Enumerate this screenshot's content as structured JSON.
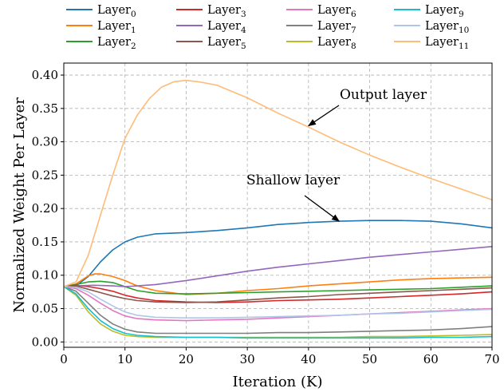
{
  "chart_data": {
    "type": "line",
    "title": "",
    "xlabel": "Iteration (K)",
    "ylabel": "Normalized Weight Per Layer",
    "xlim": [
      0,
      70
    ],
    "ylim": [
      -0.008,
      0.418
    ],
    "xticks": [
      "0",
      "10",
      "20",
      "30",
      "40",
      "50",
      "60",
      "70"
    ],
    "yticks": [
      "0.00",
      "0.05",
      "0.10",
      "0.15",
      "0.20",
      "0.25",
      "0.30",
      "0.35",
      "0.40"
    ],
    "grid": true,
    "legend": {
      "placement": "top, above plot, 4 columns",
      "entries": [
        {
          "base": "Layer",
          "sub": "0"
        },
        {
          "base": "Layer",
          "sub": "1"
        },
        {
          "base": "Layer",
          "sub": "2"
        },
        {
          "base": "Layer",
          "sub": "3"
        },
        {
          "base": "Layer",
          "sub": "4"
        },
        {
          "base": "Layer",
          "sub": "5"
        },
        {
          "base": "Layer",
          "sub": "6"
        },
        {
          "base": "Layer",
          "sub": "7"
        },
        {
          "base": "Layer",
          "sub": "8"
        },
        {
          "base": "Layer",
          "sub": "9"
        },
        {
          "base": "Layer",
          "sub": "10"
        },
        {
          "base": "Layer",
          "sub": "11"
        }
      ]
    },
    "annotations": [
      {
        "text": "Output layer",
        "target": [
          40,
          0.324
        ]
      },
      {
        "text": "Shallow layer",
        "target": [
          45,
          0.181
        ]
      }
    ],
    "series": [
      {
        "name": "Layer0",
        "color": "#1f77b4",
        "points": [
          [
            0,
            0.083
          ],
          [
            2,
            0.084
          ],
          [
            4,
            0.098
          ],
          [
            6,
            0.12
          ],
          [
            8,
            0.138
          ],
          [
            10,
            0.15
          ],
          [
            12,
            0.157
          ],
          [
            15,
            0.162
          ],
          [
            20,
            0.164
          ],
          [
            25,
            0.167
          ],
          [
            30,
            0.171
          ],
          [
            35,
            0.176
          ],
          [
            40,
            0.179
          ],
          [
            45,
            0.181
          ],
          [
            50,
            0.182
          ],
          [
            55,
            0.182
          ],
          [
            60,
            0.181
          ],
          [
            65,
            0.177
          ],
          [
            70,
            0.171
          ]
        ]
      },
      {
        "name": "Layer1",
        "color": "#ff7f0e",
        "points": [
          [
            0,
            0.083
          ],
          [
            2,
            0.087
          ],
          [
            4,
            0.099
          ],
          [
            5,
            0.102
          ],
          [
            6,
            0.102
          ],
          [
            8,
            0.098
          ],
          [
            10,
            0.092
          ],
          [
            12,
            0.084
          ],
          [
            15,
            0.077
          ],
          [
            20,
            0.071
          ],
          [
            25,
            0.073
          ],
          [
            30,
            0.077
          ],
          [
            35,
            0.08
          ],
          [
            40,
            0.084
          ],
          [
            45,
            0.087
          ],
          [
            50,
            0.09
          ],
          [
            55,
            0.093
          ],
          [
            60,
            0.095
          ],
          [
            65,
            0.096
          ],
          [
            70,
            0.097
          ]
        ]
      },
      {
        "name": "Layer2",
        "color": "#2ca02c",
        "points": [
          [
            0,
            0.083
          ],
          [
            2,
            0.086
          ],
          [
            4,
            0.09
          ],
          [
            6,
            0.091
          ],
          [
            8,
            0.089
          ],
          [
            10,
            0.083
          ],
          [
            12,
            0.077
          ],
          [
            15,
            0.073
          ],
          [
            20,
            0.072
          ],
          [
            25,
            0.073
          ],
          [
            30,
            0.074
          ],
          [
            35,
            0.075
          ],
          [
            40,
            0.076
          ],
          [
            45,
            0.077
          ],
          [
            50,
            0.078
          ],
          [
            55,
            0.079
          ],
          [
            60,
            0.08
          ],
          [
            65,
            0.082
          ],
          [
            70,
            0.084
          ]
        ]
      },
      {
        "name": "Layer3",
        "color": "#d62728",
        "points": [
          [
            0,
            0.083
          ],
          [
            2,
            0.085
          ],
          [
            4,
            0.083
          ],
          [
            6,
            0.08
          ],
          [
            8,
            0.076
          ],
          [
            10,
            0.07
          ],
          [
            12,
            0.066
          ],
          [
            15,
            0.062
          ],
          [
            20,
            0.06
          ],
          [
            25,
            0.059
          ],
          [
            30,
            0.06
          ],
          [
            35,
            0.062
          ],
          [
            40,
            0.063
          ],
          [
            45,
            0.064
          ],
          [
            50,
            0.066
          ],
          [
            55,
            0.068
          ],
          [
            60,
            0.07
          ],
          [
            65,
            0.072
          ],
          [
            70,
            0.075
          ]
        ]
      },
      {
        "name": "Layer4",
        "color": "#9467bd",
        "points": [
          [
            0,
            0.083
          ],
          [
            2,
            0.084
          ],
          [
            5,
            0.085
          ],
          [
            8,
            0.084
          ],
          [
            10,
            0.083
          ],
          [
            12,
            0.084
          ],
          [
            15,
            0.086
          ],
          [
            20,
            0.092
          ],
          [
            25,
            0.099
          ],
          [
            30,
            0.106
          ],
          [
            35,
            0.112
          ],
          [
            40,
            0.117
          ],
          [
            45,
            0.122
          ],
          [
            50,
            0.127
          ],
          [
            55,
            0.131
          ],
          [
            60,
            0.135
          ],
          [
            65,
            0.139
          ],
          [
            70,
            0.143
          ]
        ]
      },
      {
        "name": "Layer5",
        "color": "#8c564b",
        "points": [
          [
            0,
            0.083
          ],
          [
            2,
            0.084
          ],
          [
            4,
            0.079
          ],
          [
            6,
            0.074
          ],
          [
            8,
            0.069
          ],
          [
            10,
            0.065
          ],
          [
            12,
            0.062
          ],
          [
            15,
            0.06
          ],
          [
            20,
            0.059
          ],
          [
            25,
            0.06
          ],
          [
            30,
            0.063
          ],
          [
            35,
            0.066
          ],
          [
            40,
            0.068
          ],
          [
            45,
            0.071
          ],
          [
            50,
            0.073
          ],
          [
            55,
            0.075
          ],
          [
            60,
            0.077
          ],
          [
            65,
            0.079
          ],
          [
            70,
            0.081
          ]
        ]
      },
      {
        "name": "Layer6",
        "color": "#e377c2",
        "points": [
          [
            0,
            0.083
          ],
          [
            2,
            0.08
          ],
          [
            4,
            0.07
          ],
          [
            6,
            0.058
          ],
          [
            8,
            0.047
          ],
          [
            10,
            0.039
          ],
          [
            12,
            0.035
          ],
          [
            15,
            0.033
          ],
          [
            20,
            0.032
          ],
          [
            25,
            0.033
          ],
          [
            30,
            0.034
          ],
          [
            35,
            0.036
          ],
          [
            40,
            0.038
          ],
          [
            45,
            0.04
          ],
          [
            50,
            0.042
          ],
          [
            55,
            0.044
          ],
          [
            60,
            0.046
          ],
          [
            65,
            0.048
          ],
          [
            70,
            0.05
          ]
        ]
      },
      {
        "name": "Layer7",
        "color": "#7f7f7f",
        "points": [
          [
            0,
            0.083
          ],
          [
            2,
            0.076
          ],
          [
            4,
            0.058
          ],
          [
            6,
            0.04
          ],
          [
            8,
            0.027
          ],
          [
            10,
            0.019
          ],
          [
            12,
            0.015
          ],
          [
            15,
            0.013
          ],
          [
            20,
            0.013
          ],
          [
            25,
            0.013
          ],
          [
            30,
            0.013
          ],
          [
            35,
            0.014
          ],
          [
            40,
            0.014
          ],
          [
            45,
            0.015
          ],
          [
            50,
            0.016
          ],
          [
            55,
            0.017
          ],
          [
            60,
            0.018
          ],
          [
            65,
            0.02
          ],
          [
            70,
            0.023
          ]
        ]
      },
      {
        "name": "Layer8",
        "color": "#bcbd22",
        "points": [
          [
            0,
            0.083
          ],
          [
            2,
            0.07
          ],
          [
            4,
            0.045
          ],
          [
            6,
            0.027
          ],
          [
            8,
            0.016
          ],
          [
            10,
            0.01
          ],
          [
            12,
            0.008
          ],
          [
            15,
            0.007
          ],
          [
            20,
            0.007
          ],
          [
            25,
            0.007
          ],
          [
            30,
            0.007
          ],
          [
            35,
            0.007
          ],
          [
            40,
            0.007
          ],
          [
            45,
            0.007
          ],
          [
            50,
            0.008
          ],
          [
            55,
            0.008
          ],
          [
            60,
            0.009
          ],
          [
            65,
            0.01
          ],
          [
            70,
            0.011
          ]
        ]
      },
      {
        "name": "Layer9",
        "color": "#17becf",
        "points": [
          [
            0,
            0.083
          ],
          [
            2,
            0.072
          ],
          [
            4,
            0.05
          ],
          [
            6,
            0.032
          ],
          [
            8,
            0.02
          ],
          [
            10,
            0.013
          ],
          [
            12,
            0.01
          ],
          [
            15,
            0.008
          ],
          [
            20,
            0.007
          ],
          [
            25,
            0.007
          ],
          [
            30,
            0.006
          ],
          [
            35,
            0.006
          ],
          [
            40,
            0.006
          ],
          [
            45,
            0.006
          ],
          [
            50,
            0.006
          ],
          [
            55,
            0.006
          ],
          [
            60,
            0.007
          ],
          [
            65,
            0.007
          ],
          [
            70,
            0.008
          ]
        ]
      },
      {
        "name": "Layer10",
        "color": "#aec7e8",
        "points": [
          [
            0,
            0.083
          ],
          [
            2,
            0.082
          ],
          [
            4,
            0.075
          ],
          [
            6,
            0.064
          ],
          [
            8,
            0.054
          ],
          [
            10,
            0.045
          ],
          [
            12,
            0.04
          ],
          [
            15,
            0.037
          ],
          [
            20,
            0.036
          ],
          [
            25,
            0.036
          ],
          [
            30,
            0.037
          ],
          [
            35,
            0.038
          ],
          [
            40,
            0.039
          ],
          [
            45,
            0.04
          ],
          [
            50,
            0.042
          ],
          [
            55,
            0.043
          ],
          [
            60,
            0.045
          ],
          [
            65,
            0.047
          ],
          [
            70,
            0.049
          ]
        ]
      },
      {
        "name": "Layer11",
        "color": "#ffbb78",
        "points": [
          [
            0,
            0.083
          ],
          [
            2,
            0.09
          ],
          [
            4,
            0.13
          ],
          [
            6,
            0.19
          ],
          [
            8,
            0.25
          ],
          [
            10,
            0.305
          ],
          [
            12,
            0.34
          ],
          [
            14,
            0.365
          ],
          [
            16,
            0.382
          ],
          [
            18,
            0.39
          ],
          [
            20,
            0.392
          ],
          [
            22,
            0.39
          ],
          [
            25,
            0.385
          ],
          [
            30,
            0.366
          ],
          [
            35,
            0.343
          ],
          [
            40,
            0.322
          ],
          [
            45,
            0.3
          ],
          [
            50,
            0.28
          ],
          [
            55,
            0.262
          ],
          [
            60,
            0.245
          ],
          [
            65,
            0.229
          ],
          [
            70,
            0.213
          ]
        ]
      }
    ]
  }
}
